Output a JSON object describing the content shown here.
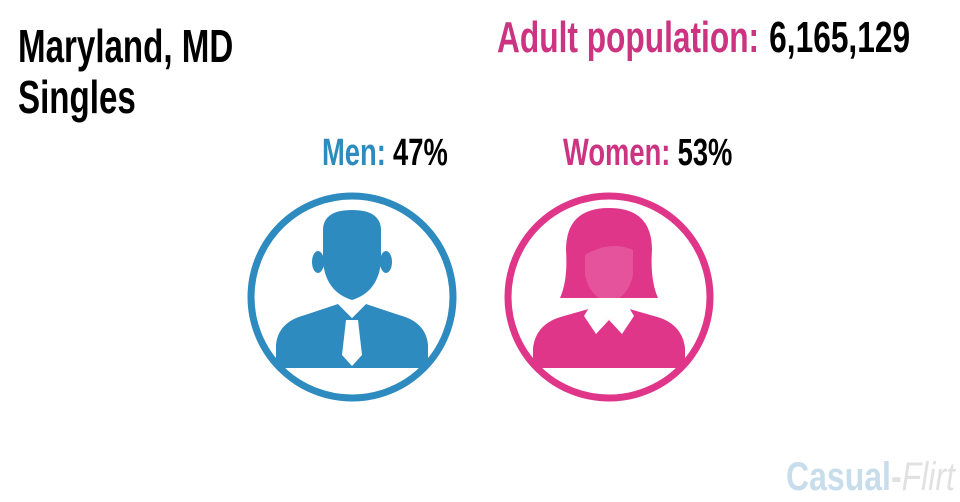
{
  "header": {
    "title": "Maryland, MD",
    "subtitle": "Singles",
    "population_label": "Adult population:",
    "population_value": "6,165,129"
  },
  "men": {
    "label": "Men:",
    "value": "47%"
  },
  "women": {
    "label": "Women:",
    "value": "53%"
  },
  "watermark": {
    "part1": "Casual",
    "separator": "-",
    "part2": "Flirt"
  }
}
